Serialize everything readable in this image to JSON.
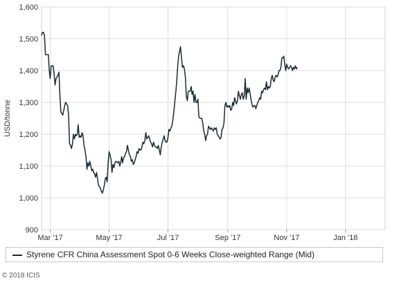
{
  "chart_data": {
    "type": "line",
    "title": "",
    "xlabel": "",
    "ylabel": "USD/tonne",
    "ylim": [
      900,
      1600
    ],
    "yticks": [
      "900",
      "1,000",
      "1,100",
      "1,200",
      "1,300",
      "1,400",
      "1,500",
      "1,600"
    ],
    "xticks": [
      {
        "label": "Mar '17",
        "day": 0
      },
      {
        "label": "May '17",
        "day": 61
      },
      {
        "label": "Jul '17",
        "day": 122
      },
      {
        "label": "Sep '17",
        "day": 184
      },
      {
        "label": "Nov '17",
        "day": 245
      },
      {
        "label": "Jan '18",
        "day": 306
      }
    ],
    "xlim": [
      -9,
      347
    ],
    "grid": true,
    "legend_position": "bottom",
    "line_color": "#1a2a33",
    "series": [
      {
        "name": "Styrene CFR China Assessment Spot 0-6 Weeks Close-weighted Range (Mid)",
        "points": [
          [
            -9,
            1510
          ],
          [
            -8,
            1520
          ],
          [
            -7,
            1520
          ],
          [
            -6,
            1510
          ],
          [
            -5,
            1450
          ],
          [
            -3,
            1450
          ],
          [
            -2,
            1450
          ],
          [
            -1,
            1400
          ],
          [
            0,
            1375
          ],
          [
            1,
            1415
          ],
          [
            3,
            1415
          ],
          [
            4,
            1390
          ],
          [
            5,
            1355
          ],
          [
            6,
            1375
          ],
          [
            7,
            1380
          ],
          [
            8,
            1385
          ],
          [
            9,
            1395
          ],
          [
            10,
            1320
          ],
          [
            11,
            1270
          ],
          [
            12,
            1265
          ],
          [
            13,
            1260
          ],
          [
            15,
            1290
          ],
          [
            16,
            1300
          ],
          [
            17,
            1295
          ],
          [
            18,
            1290
          ],
          [
            19,
            1260
          ],
          [
            20,
            1170
          ],
          [
            21,
            1165
          ],
          [
            22,
            1155
          ],
          [
            23,
            1170
          ],
          [
            24,
            1200
          ],
          [
            25,
            1185
          ],
          [
            26,
            1200
          ],
          [
            27,
            1195
          ],
          [
            28,
            1200
          ],
          [
            29,
            1230
          ],
          [
            30,
            1190
          ],
          [
            31,
            1195
          ],
          [
            32,
            1190
          ],
          [
            33,
            1205
          ],
          [
            34,
            1195
          ],
          [
            35,
            1165
          ],
          [
            36,
            1150
          ],
          [
            37,
            1130
          ],
          [
            38,
            1090
          ],
          [
            39,
            1110
          ],
          [
            40,
            1100
          ],
          [
            41,
            1115
          ],
          [
            42,
            1100
          ],
          [
            43,
            1085
          ],
          [
            44,
            1090
          ],
          [
            45,
            1080
          ],
          [
            46,
            1075
          ],
          [
            47,
            1065
          ],
          [
            48,
            1080
          ],
          [
            49,
            1060
          ],
          [
            50,
            1040
          ],
          [
            51,
            1035
          ],
          [
            52,
            1030
          ],
          [
            53,
            1020
          ],
          [
            54,
            1015
          ],
          [
            55,
            1025
          ],
          [
            56,
            1040
          ],
          [
            57,
            1060
          ],
          [
            58,
            1065
          ],
          [
            59,
            1050
          ],
          [
            60,
            1110
          ],
          [
            61,
            1145
          ],
          [
            62,
            1135
          ],
          [
            63,
            1120
          ],
          [
            64,
            1080
          ],
          [
            65,
            1105
          ],
          [
            66,
            1095
          ],
          [
            67,
            1110
          ],
          [
            68,
            1115
          ],
          [
            70,
            1110
          ],
          [
            71,
            1115
          ],
          [
            72,
            1100
          ],
          [
            73,
            1110
          ],
          [
            74,
            1130
          ],
          [
            75,
            1110
          ],
          [
            76,
            1125
          ],
          [
            77,
            1130
          ],
          [
            78,
            1140
          ],
          [
            79,
            1145
          ],
          [
            80,
            1165
          ],
          [
            81,
            1150
          ],
          [
            82,
            1135
          ],
          [
            83,
            1130
          ],
          [
            84,
            1115
          ],
          [
            85,
            1120
          ],
          [
            86,
            1105
          ],
          [
            87,
            1110
          ],
          [
            88,
            1120
          ],
          [
            89,
            1130
          ],
          [
            90,
            1145
          ],
          [
            91,
            1140
          ],
          [
            92,
            1155
          ],
          [
            93,
            1150
          ],
          [
            94,
            1150
          ],
          [
            95,
            1160
          ],
          [
            96,
            1175
          ],
          [
            97,
            1170
          ],
          [
            98,
            1180
          ],
          [
            99,
            1205
          ],
          [
            100,
            1185
          ],
          [
            101,
            1190
          ],
          [
            102,
            1195
          ],
          [
            103,
            1185
          ],
          [
            104,
            1175
          ],
          [
            105,
            1170
          ],
          [
            106,
            1160
          ],
          [
            107,
            1175
          ],
          [
            108,
            1165
          ],
          [
            109,
            1160
          ],
          [
            110,
            1160
          ],
          [
            111,
            1155
          ],
          [
            112,
            1165
          ],
          [
            113,
            1150
          ],
          [
            114,
            1135
          ],
          [
            115,
            1160
          ],
          [
            116,
            1175
          ],
          [
            117,
            1185
          ],
          [
            118,
            1195
          ],
          [
            119,
            1180
          ],
          [
            120,
            1175
          ],
          [
            121,
            1175
          ],
          [
            122,
            1190
          ],
          [
            123,
            1215
          ],
          [
            124,
            1210
          ],
          [
            125,
            1220
          ],
          [
            126,
            1225
          ],
          [
            127,
            1245
          ],
          [
            128,
            1270
          ],
          [
            129,
            1300
          ],
          [
            130,
            1330
          ],
          [
            131,
            1365
          ],
          [
            132,
            1410
          ],
          [
            133,
            1445
          ],
          [
            134,
            1460
          ],
          [
            135,
            1475
          ],
          [
            136,
            1440
          ],
          [
            137,
            1410
          ],
          [
            138,
            1415
          ],
          [
            139,
            1405
          ],
          [
            140,
            1380
          ],
          [
            141,
            1320
          ],
          [
            142,
            1305
          ],
          [
            143,
            1335
          ],
          [
            144,
            1335
          ],
          [
            145,
            1335
          ],
          [
            146,
            1350
          ],
          [
            147,
            1325
          ],
          [
            148,
            1335
          ],
          [
            149,
            1300
          ],
          [
            150,
            1325
          ],
          [
            151,
            1300
          ],
          [
            152,
            1300
          ],
          [
            153,
            1310
          ],
          [
            154,
            1255
          ],
          [
            155,
            1250
          ],
          [
            157,
            1250
          ],
          [
            158,
            1235
          ],
          [
            159,
            1210
          ],
          [
            160,
            1200
          ],
          [
            161,
            1180
          ],
          [
            162,
            1195
          ],
          [
            163,
            1200
          ],
          [
            164,
            1225
          ],
          [
            165,
            1220
          ],
          [
            166,
            1215
          ],
          [
            167,
            1220
          ],
          [
            168,
            1215
          ],
          [
            169,
            1210
          ],
          [
            170,
            1220
          ],
          [
            171,
            1215
          ],
          [
            172,
            1220
          ],
          [
            173,
            1200
          ],
          [
            174,
            1195
          ],
          [
            175,
            1190
          ],
          [
            176,
            1185
          ],
          [
            177,
            1190
          ],
          [
            178,
            1215
          ],
          [
            179,
            1220
          ],
          [
            180,
            1235
          ],
          [
            181,
            1290
          ],
          [
            182,
            1300
          ],
          [
            183,
            1285
          ],
          [
            184,
            1290
          ],
          [
            185,
            1285
          ],
          [
            186,
            1290
          ],
          [
            187,
            1275
          ],
          [
            188,
            1280
          ],
          [
            189,
            1300
          ],
          [
            190,
            1290
          ],
          [
            191,
            1315
          ],
          [
            192,
            1305
          ],
          [
            193,
            1295
          ],
          [
            194,
            1305
          ],
          [
            195,
            1335
          ],
          [
            196,
            1320
          ],
          [
            197,
            1310
          ],
          [
            198,
            1325
          ],
          [
            199,
            1330
          ],
          [
            200,
            1310
          ],
          [
            201,
            1320
          ],
          [
            202,
            1375
          ],
          [
            203,
            1310
          ],
          [
            204,
            1345
          ],
          [
            205,
            1330
          ],
          [
            206,
            1345
          ],
          [
            207,
            1330
          ],
          [
            208,
            1310
          ],
          [
            209,
            1295
          ],
          [
            210,
            1285
          ],
          [
            211,
            1290
          ],
          [
            212,
            1290
          ],
          [
            213,
            1280
          ],
          [
            214,
            1290
          ],
          [
            215,
            1300
          ],
          [
            216,
            1305
          ],
          [
            217,
            1315
          ],
          [
            218,
            1310
          ],
          [
            219,
            1335
          ],
          [
            220,
            1330
          ],
          [
            221,
            1340
          ],
          [
            222,
            1345
          ],
          [
            223,
            1340
          ],
          [
            224,
            1365
          ],
          [
            225,
            1340
          ],
          [
            226,
            1350
          ],
          [
            227,
            1345
          ],
          [
            228,
            1350
          ],
          [
            229,
            1375
          ],
          [
            230,
            1385
          ],
          [
            231,
            1370
          ],
          [
            232,
            1365
          ],
          [
            233,
            1380
          ],
          [
            234,
            1385
          ],
          [
            235,
            1380
          ],
          [
            236,
            1385
          ],
          [
            237,
            1400
          ],
          [
            238,
            1400
          ],
          [
            239,
            1410
          ],
          [
            240,
            1440
          ],
          [
            241,
            1440
          ],
          [
            242,
            1445
          ],
          [
            243,
            1420
          ],
          [
            244,
            1400
          ],
          [
            245,
            1420
          ],
          [
            246,
            1410
          ],
          [
            247,
            1405
          ],
          [
            248,
            1410
          ],
          [
            249,
            1415
          ],
          [
            250,
            1410
          ],
          [
            251,
            1400
          ],
          [
            252,
            1410
          ],
          [
            253,
            1405
          ],
          [
            254,
            1415
          ],
          [
            255,
            1405
          ],
          [
            256,
            1410
          ]
        ]
      }
    ]
  },
  "legend": {
    "label": "Styrene CFR China Assessment Spot 0-6 Weeks Close-weighted Range (Mid)"
  },
  "footer": {
    "copyright": "© 2018 ICIS"
  }
}
